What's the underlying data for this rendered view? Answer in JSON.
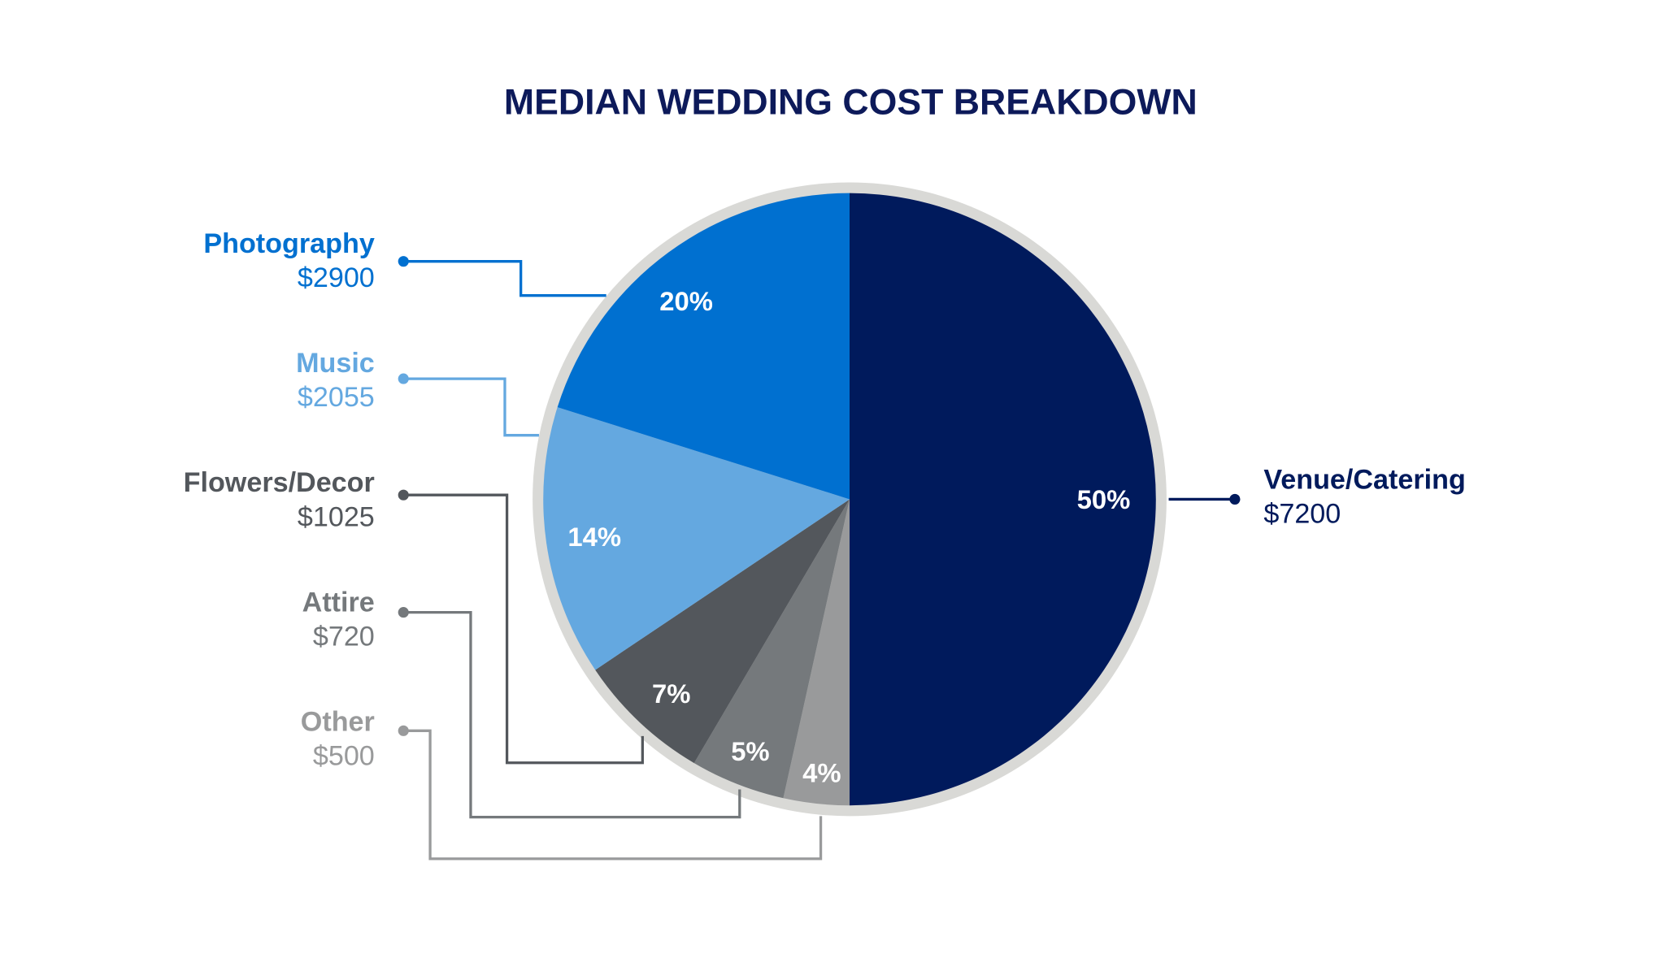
{
  "chart_data": {
    "type": "pie",
    "title": "MEDIAN WEDDING COST BREAKDOWN",
    "slices": [
      {
        "name": "Venue/Catering",
        "value": 7200,
        "value_label": "$7200",
        "percent_label": "50%",
        "color": "#001a5c"
      },
      {
        "name": "Other",
        "value": 500,
        "value_label": "$500",
        "percent_label": "4%",
        "color": "#999a9b"
      },
      {
        "name": "Attire",
        "value": 720,
        "value_label": "$720",
        "percent_label": "5%",
        "color": "#75797c"
      },
      {
        "name": "Flowers/Decor",
        "value": 1025,
        "value_label": "$1025",
        "percent_label": "7%",
        "color": "#53575c"
      },
      {
        "name": "Music",
        "value": 2055,
        "value_label": "$2055",
        "percent_label": "14%",
        "color": "#64a8e0"
      },
      {
        "name": "Photography",
        "value": 2900,
        "value_label": "$2900",
        "percent_label": "20%",
        "color": "#0070d0"
      }
    ],
    "ring_color": "#d9d9d6",
    "label_colors": {
      "Venue/Catering": "#001a5c",
      "Photography": "#0070d0",
      "Music": "#64a8e0",
      "Flowers/Decor": "#53575c",
      "Attire": "#75797c",
      "Other": "#999a9b"
    }
  }
}
